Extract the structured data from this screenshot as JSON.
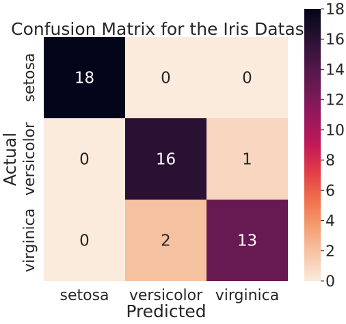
{
  "chart_data": {
    "type": "heatmap",
    "title": "Confusion Matrix for the Iris Dataset",
    "xlabel": "Predicted",
    "ylabel": "Actual",
    "x_categories": [
      "setosa",
      "versicolor",
      "virginica"
    ],
    "y_categories": [
      "setosa",
      "versicolor",
      "virginica"
    ],
    "values": [
      [
        18,
        0,
        0
      ],
      [
        0,
        16,
        1
      ],
      [
        0,
        2,
        13
      ]
    ],
    "colorbar": {
      "range": [
        0,
        18
      ],
      "ticks": [
        0,
        2,
        4,
        6,
        8,
        10,
        12,
        14,
        16,
        18
      ],
      "colormap": "rocket_r",
      "low_color": "#faebdd",
      "high_color": "#03051a"
    },
    "annotations": true
  }
}
